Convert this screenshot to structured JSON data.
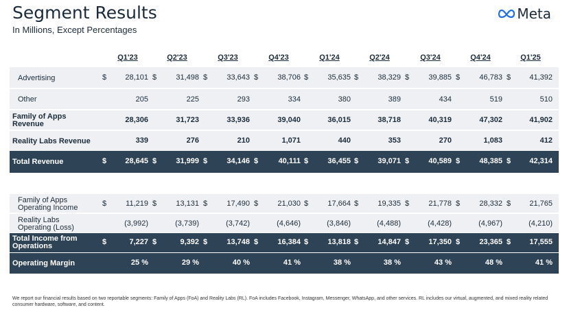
{
  "title": "Segment Results",
  "subtitle": "In Millions, Except Percentages",
  "logo_text": "Meta",
  "logo_icon": "meta-infinity-logo",
  "quarters": [
    "Q1'23",
    "Q2'23",
    "Q3'23",
    "Q4'23",
    "Q1'24",
    "Q2'24",
    "Q3'24",
    "Q4'24",
    "Q1'25"
  ],
  "table1": [
    {
      "label": "Advertising",
      "bold": false,
      "dollar": true,
      "values": [
        "28,101",
        "31,498",
        "33,643",
        "38,706",
        "35,635",
        "38,329",
        "39,885",
        "46,783",
        "41,392"
      ]
    },
    {
      "label": "Other",
      "bold": false,
      "dollar": false,
      "values": [
        "205",
        "225",
        "293",
        "334",
        "380",
        "389",
        "434",
        "519",
        "510"
      ]
    },
    {
      "label": "Family of Apps\nRevenue",
      "bold": true,
      "dollar": false,
      "values": [
        "28,306",
        "31,723",
        "33,936",
        "39,040",
        "36,015",
        "38,718",
        "40,319",
        "47,302",
        "41,902"
      ]
    },
    {
      "label": "Reality Labs Revenue",
      "bold": true,
      "dollar": false,
      "values": [
        "339",
        "276",
        "210",
        "1,071",
        "440",
        "353",
        "270",
        "1,083",
        "412"
      ]
    },
    {
      "label": "Total Revenue",
      "bold": true,
      "dollar": true,
      "dark": true,
      "values": [
        "28,645",
        "31,999",
        "34,146",
        "40,111",
        "36,455",
        "39,071",
        "40,589",
        "48,385",
        "42,314"
      ]
    }
  ],
  "table2": [
    {
      "label": "Family of Apps\nOperating Income",
      "bold": false,
      "dollar": true,
      "values": [
        "11,219",
        "13,131",
        "17,490",
        "21,030",
        "17,664",
        "19,335",
        "21,778",
        "28,332",
        "21,765"
      ]
    },
    {
      "label": "Reality Labs\nOperating (Loss)",
      "bold": false,
      "dollar": false,
      "values": [
        "(3,992)",
        "(3,739)",
        "(3,742)",
        "(4,646)",
        "(3,846)",
        "(4,488)",
        "(4,428)",
        "(4,967)",
        "(4,210)"
      ]
    },
    {
      "label": "Total Income from\nOperations",
      "bold": true,
      "dollar": true,
      "dark": true,
      "values": [
        "7,227",
        "9,392",
        "13,748",
        "16,384",
        "13,818",
        "14,847",
        "17,350",
        "23,365",
        "17,555"
      ]
    },
    {
      "label": "Operating Margin",
      "bold": true,
      "dollar": false,
      "dark": true,
      "values": [
        "25 %",
        "29 %",
        "40 %",
        "41 %",
        "38 %",
        "38 %",
        "43 %",
        "48 %",
        "41 %"
      ]
    }
  ],
  "dollar_sign": "$",
  "footnote": "We report our financial results based on two reportable segments: Family of Apps (FoA) and Reality Labs (RL). FoA includes Facebook, Instagram, Messenger, WhatsApp, and other services. RL includes our virtual, augmented, and mixed reality related consumer hardware, software, and content.",
  "colors": {
    "dark_row": "#2f4356",
    "light_row": "#eef0f3",
    "text": "#1c2b39"
  }
}
